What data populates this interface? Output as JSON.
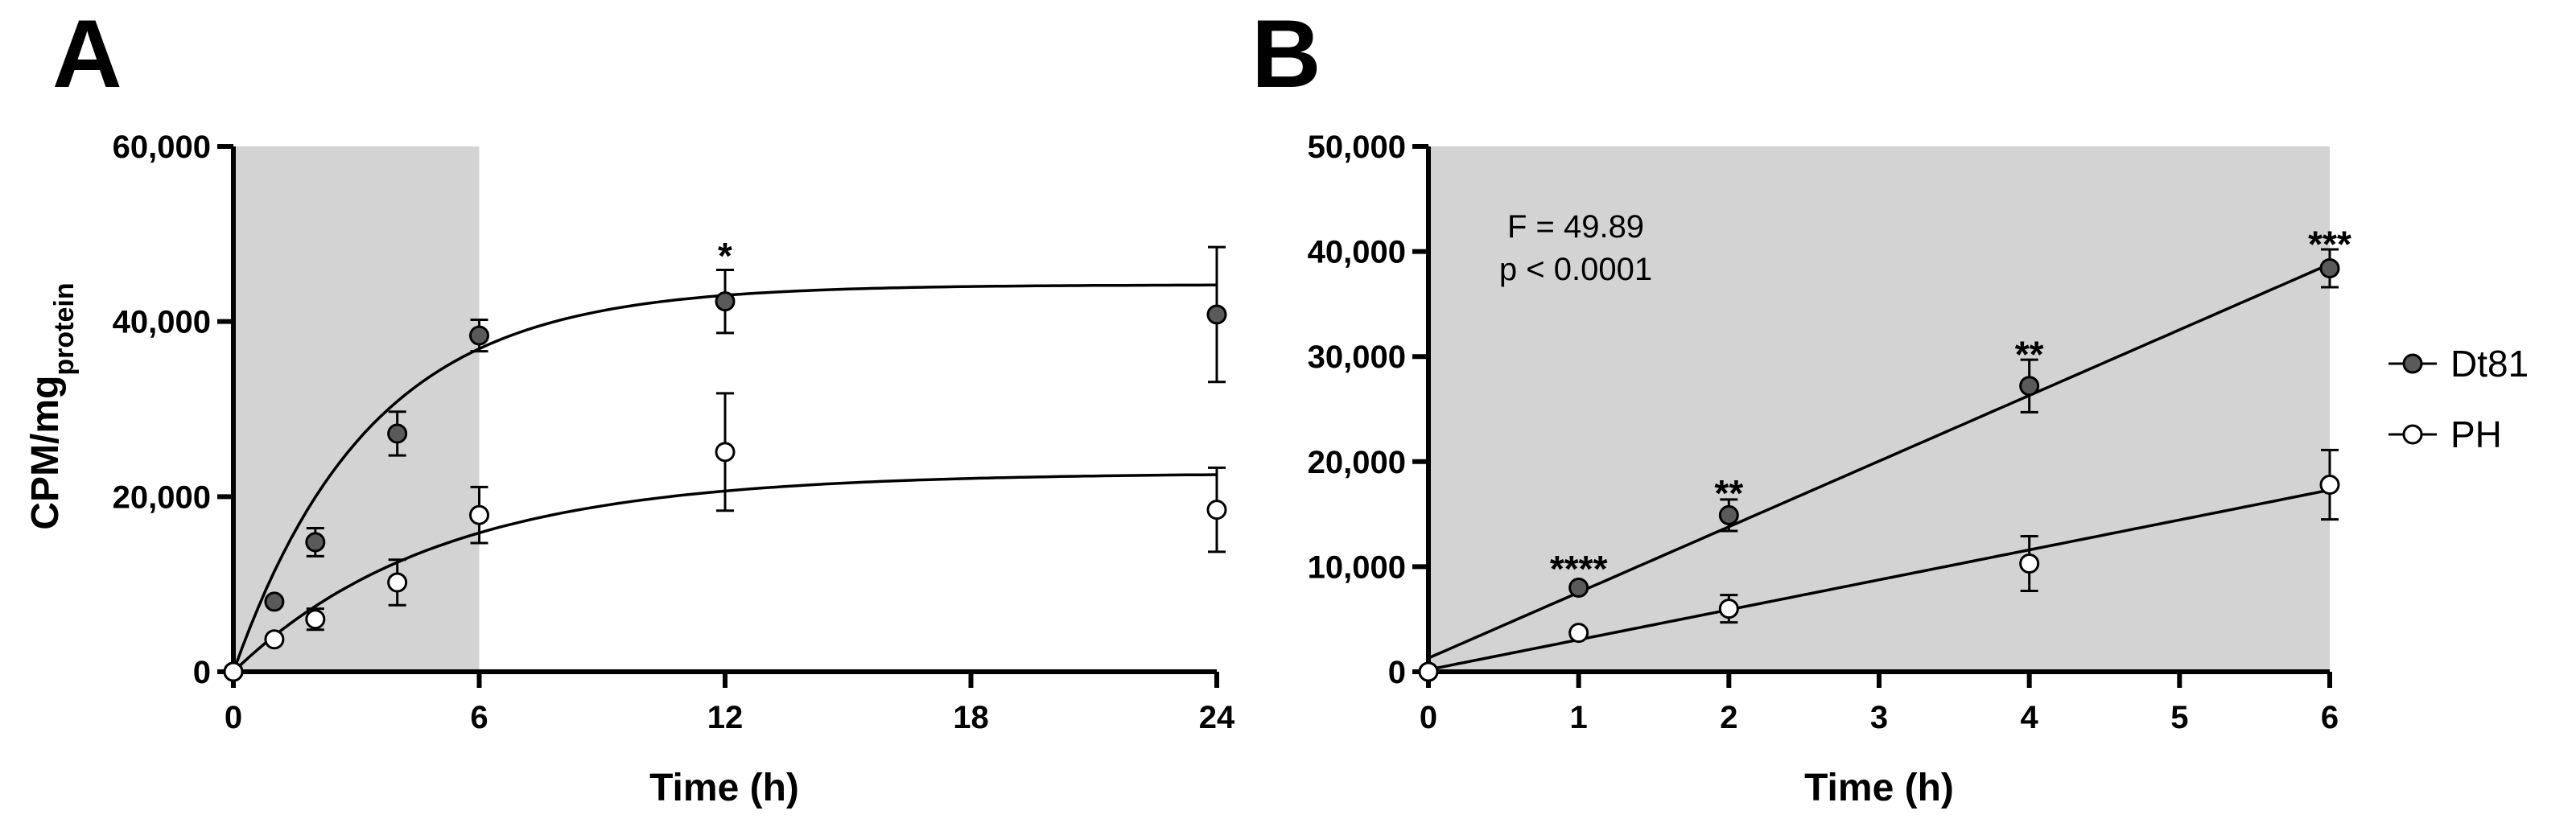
{
  "chart_data": [
    {
      "panel": "A",
      "type": "scatter",
      "xlabel": "Time (h)",
      "ylabel": "CPM/mg",
      "ylabel_subscript": "protein",
      "xlim": [
        0,
        24
      ],
      "ylim": [
        0,
        60000
      ],
      "xticks": [
        0,
        6,
        12,
        18,
        24
      ],
      "xtick_labels": [
        "0",
        "6",
        "12",
        "18",
        "24"
      ],
      "yticks": [
        0,
        20000,
        40000,
        60000
      ],
      "ytick_labels": [
        "0",
        "20,000",
        "40,000",
        "60,000"
      ],
      "shaded_region": [
        0,
        6
      ],
      "series": [
        {
          "name": "Dt81",
          "marker": "filled",
          "color": "#5a5a5a",
          "points": [
            {
              "x": 0,
              "y": 0,
              "err": 0
            },
            {
              "x": 1,
              "y": 8000,
              "err": 0
            },
            {
              "x": 2,
              "y": 14800,
              "err": 1600
            },
            {
              "x": 4,
              "y": 27200,
              "err": 2500
            },
            {
              "x": 6,
              "y": 38400,
              "err": 1800
            },
            {
              "x": 12,
              "y": 42300,
              "err": 3600
            },
            {
              "x": 24,
              "y": 40800,
              "err": 7700
            }
          ],
          "fit": {
            "model": "one-phase association",
            "plateau": 44200,
            "k": 0.3
          }
        },
        {
          "name": "PH",
          "marker": "open",
          "color": "#ffffff",
          "points": [
            {
              "x": 0,
              "y": 0,
              "err": 0
            },
            {
              "x": 1,
              "y": 3700,
              "err": 0
            },
            {
              "x": 2,
              "y": 6000,
              "err": 1200
            },
            {
              "x": 4,
              "y": 10200,
              "err": 2600
            },
            {
              "x": 6,
              "y": 17900,
              "err": 3200
            },
            {
              "x": 12,
              "y": 25100,
              "err": 6700
            },
            {
              "x": 24,
              "y": 18500,
              "err": 4800
            }
          ],
          "fit": {
            "model": "one-phase association",
            "plateau": 22700,
            "k": 0.2
          }
        }
      ],
      "annotations": [
        {
          "text": "*",
          "x": 12,
          "y": 47500
        }
      ]
    },
    {
      "panel": "B",
      "type": "scatter",
      "xlabel": "Time (h)",
      "xlim": [
        0,
        6
      ],
      "ylim": [
        0,
        50000
      ],
      "xticks": [
        0,
        1,
        2,
        3,
        4,
        5,
        6
      ],
      "xtick_labels": [
        "0",
        "1",
        "2",
        "3",
        "4",
        "5",
        "6"
      ],
      "yticks": [
        0,
        10000,
        20000,
        30000,
        40000,
        50000
      ],
      "ytick_labels": [
        "0",
        "10,000",
        "20,000",
        "30,000",
        "40,000",
        "50,000"
      ],
      "shaded_region": [
        0,
        6
      ],
      "series": [
        {
          "name": "Dt81",
          "marker": "filled",
          "color": "#5a5a5a",
          "points": [
            {
              "x": 0,
              "y": 0,
              "err": 0
            },
            {
              "x": 1,
              "y": 8000,
              "err": 0
            },
            {
              "x": 2,
              "y": 14900,
              "err": 1500
            },
            {
              "x": 4,
              "y": 27200,
              "err": 2500
            },
            {
              "x": 6,
              "y": 38400,
              "err": 1800
            }
          ],
          "fit": {
            "model": "linear",
            "intercept": 1300,
            "slope": 6250
          }
        },
        {
          "name": "PH",
          "marker": "open",
          "color": "#ffffff",
          "points": [
            {
              "x": 0,
              "y": 0,
              "err": 0
            },
            {
              "x": 1,
              "y": 3700,
              "err": 0
            },
            {
              "x": 2,
              "y": 6000,
              "err": 1300
            },
            {
              "x": 4,
              "y": 10300,
              "err": 2600
            },
            {
              "x": 6,
              "y": 17800,
              "err": 3300
            }
          ],
          "fit": {
            "model": "linear",
            "intercept": 200,
            "slope": 2850
          }
        }
      ],
      "annotations": [
        {
          "text": "****",
          "x": 1,
          "y": 9800
        },
        {
          "text": "**",
          "x": 2,
          "y": 17000
        },
        {
          "text": "**",
          "x": 4,
          "y": 30200
        },
        {
          "text": "***",
          "x": 6,
          "y": 40700
        }
      ],
      "stats": [
        "F = 49.89",
        "p < 0.0001"
      ]
    }
  ],
  "legend": {
    "position": "right",
    "items": [
      {
        "label": "Dt81",
        "marker": "filled"
      },
      {
        "label": "PH",
        "marker": "open"
      }
    ]
  },
  "colors": {
    "shade": "#d3d3d3",
    "filled_marker": "#5a5a5a",
    "line": "#000000"
  }
}
